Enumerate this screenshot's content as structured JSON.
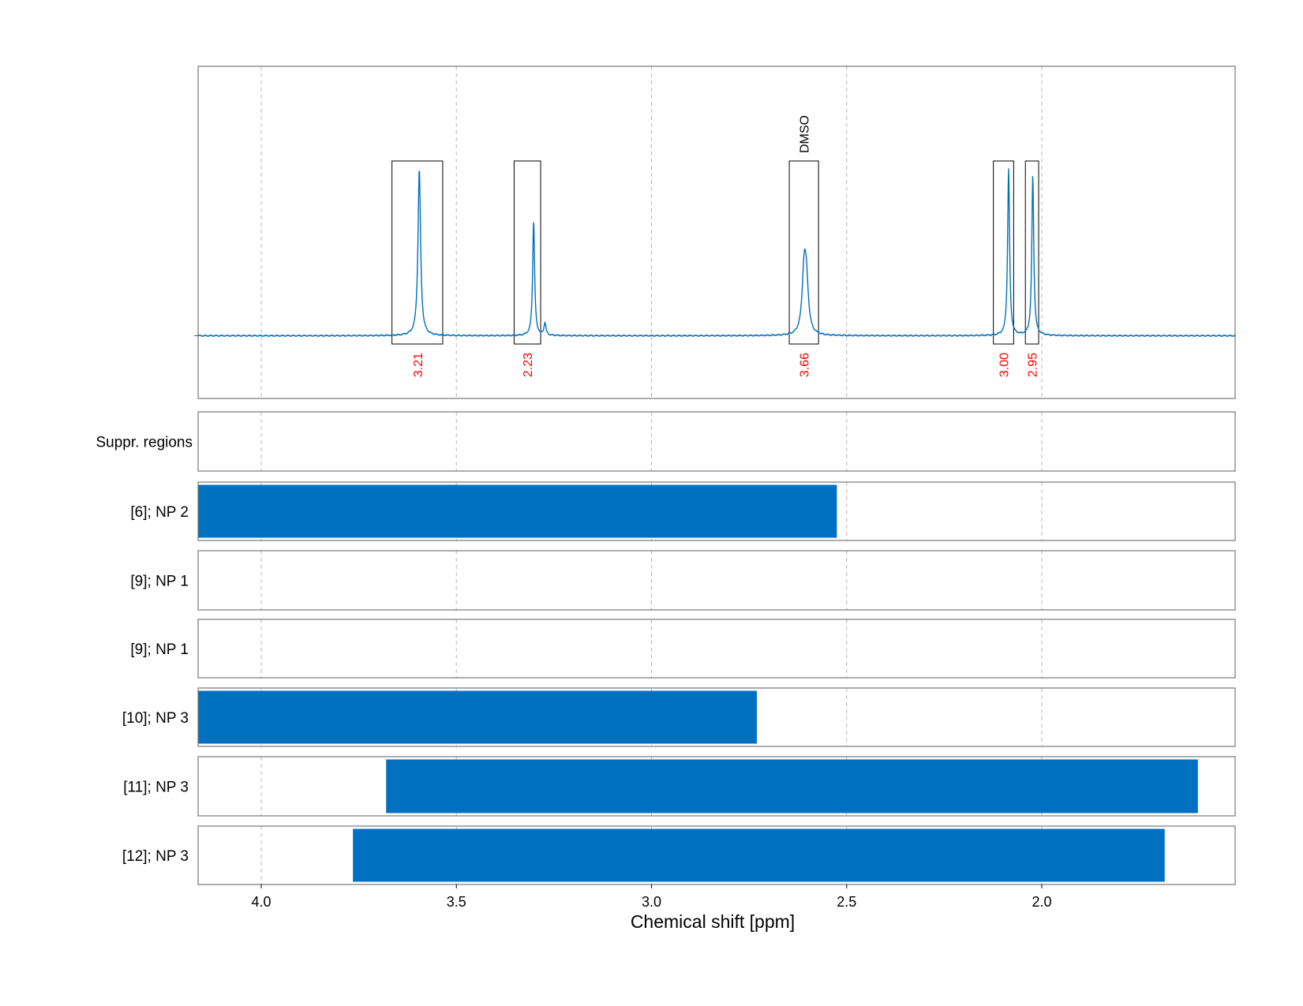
{
  "chart_data": {
    "type": "line",
    "xlabel": "Chemical shift [ppm]",
    "xlim": [
      4.163,
      1.51
    ],
    "x_reversed": true,
    "x_ticks": [
      "4.0",
      "3.5",
      "3.0",
      "2.5",
      "2.0"
    ],
    "grid": "vertical dashed",
    "colors": {
      "spectrum": "#0070c0",
      "bar": "#0070c0",
      "integral": "#ff0000",
      "frame": "#777777"
    },
    "spectrum": {
      "baseline": 0,
      "peaks": [
        {
          "center": 3.595,
          "height": 1.0,
          "width": 0.004
        },
        {
          "center": 3.302,
          "height": 0.69,
          "width": 0.003
        },
        {
          "center": 3.273,
          "height": 0.075,
          "width": 0.003
        },
        {
          "center": 2.609,
          "height": 0.36,
          "width": 0.006
        },
        {
          "center": 2.603,
          "height": 0.28,
          "width": 0.006
        },
        {
          "center": 2.085,
          "height": 1.0,
          "width": 0.003
        },
        {
          "center": 2.023,
          "height": 0.96,
          "width": 0.003
        }
      ]
    },
    "integral_regions": [
      {
        "from": 3.665,
        "to": 3.535,
        "label": "3.21"
      },
      {
        "from": 3.352,
        "to": 3.284,
        "label": "2.23"
      },
      {
        "from": 2.647,
        "to": 2.572,
        "label": "3.66",
        "annotation": "DMSO"
      },
      {
        "from": 2.124,
        "to": 2.072,
        "label": "3.00"
      },
      {
        "from": 2.042,
        "to": 2.008,
        "label": "2.95"
      }
    ],
    "rows": [
      {
        "label": "Suppr. regions",
        "bars": []
      },
      {
        "label": "[6]; NP 2",
        "bars": [
          [
            4.163,
            2.525
          ]
        ]
      },
      {
        "label": "[9]; NP 1",
        "bars": []
      },
      {
        "label": "[9]; NP 1",
        "bars": []
      },
      {
        "label": "[10]; NP 3",
        "bars": [
          [
            4.163,
            2.73
          ]
        ]
      },
      {
        "label": "[11]; NP 3",
        "bars": [
          [
            3.68,
            1.6
          ]
        ]
      },
      {
        "label": "[12]; NP 3",
        "bars": [
          [
            3.765,
            1.685
          ]
        ]
      }
    ]
  }
}
